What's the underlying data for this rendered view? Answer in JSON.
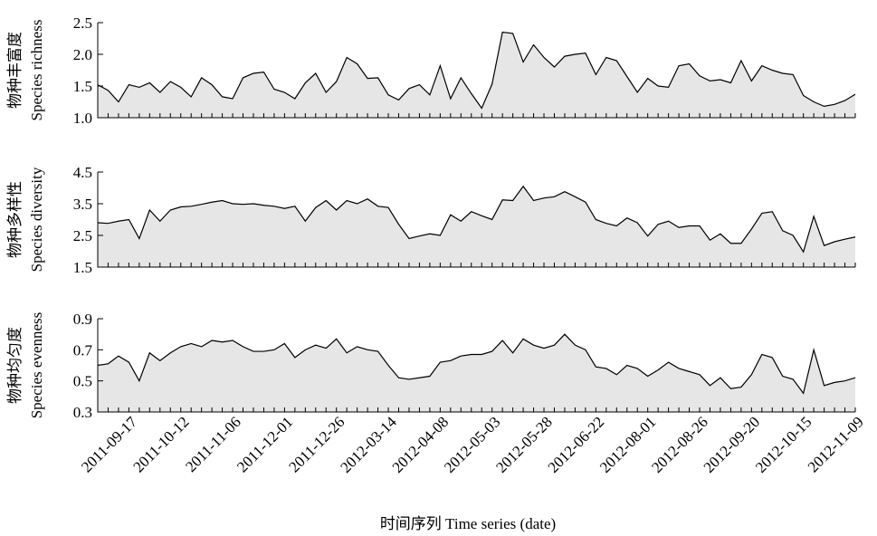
{
  "chart_data": [
    {
      "type": "area",
      "ylabel": [
        "物种丰富度",
        "Species richness"
      ],
      "color": "#e6e6e6",
      "line_color": "#000000",
      "ylim": [
        1.0,
        2.5
      ],
      "yticks": [
        {
          "value": 1,
          "label": "1.0"
        },
        1.5,
        {
          "value": 2,
          "label": "2.0"
        },
        2.5
      ],
      "values": [
        1.52,
        1.43,
        1.25,
        1.52,
        1.48,
        1.55,
        1.4,
        1.57,
        1.48,
        1.33,
        1.63,
        1.52,
        1.33,
        1.3,
        1.63,
        1.7,
        1.72,
        1.45,
        1.4,
        1.3,
        1.55,
        1.7,
        1.4,
        1.57,
        1.95,
        1.85,
        1.62,
        1.63,
        1.36,
        1.28,
        1.46,
        1.52,
        1.36,
        1.82,
        1.3,
        1.63,
        1.38,
        1.15,
        1.53,
        2.35,
        2.33,
        1.88,
        2.15,
        1.95,
        1.8,
        1.97,
        2.0,
        2.02,
        1.68,
        1.95,
        1.9,
        1.65,
        1.4,
        1.62,
        1.5,
        1.48,
        1.82,
        1.85,
        1.66,
        1.58,
        1.6,
        1.55,
        1.9,
        1.58,
        1.82,
        1.75,
        1.7,
        1.68,
        1.35,
        1.25,
        1.18,
        1.21,
        1.27,
        1.37
      ]
    },
    {
      "type": "area",
      "ylabel": [
        "物种多样性",
        "Species diversity"
      ],
      "color": "#e6e6e6",
      "line_color": "#000000",
      "ylim": [
        1.5,
        4.5
      ],
      "yticks": [
        1.5,
        2.5,
        3.5,
        4.5
      ],
      "values": [
        2.9,
        2.88,
        2.95,
        3.0,
        2.4,
        3.3,
        2.95,
        3.3,
        3.4,
        3.42,
        3.48,
        3.55,
        3.6,
        3.5,
        3.48,
        3.5,
        3.45,
        3.42,
        3.35,
        3.42,
        2.95,
        3.38,
        3.6,
        3.3,
        3.6,
        3.5,
        3.65,
        3.42,
        3.38,
        2.85,
        2.4,
        2.48,
        2.55,
        2.5,
        3.15,
        2.95,
        3.25,
        3.12,
        3.0,
        3.62,
        3.6,
        4.05,
        3.6,
        3.68,
        3.72,
        3.88,
        3.72,
        3.55,
        3.0,
        2.88,
        2.8,
        3.05,
        2.9,
        2.48,
        2.85,
        2.95,
        2.75,
        2.8,
        2.8,
        2.35,
        2.55,
        2.25,
        2.25,
        2.7,
        3.2,
        3.25,
        2.65,
        2.5,
        1.98,
        3.1,
        2.18,
        2.3,
        2.38,
        2.45
      ]
    },
    {
      "type": "area",
      "ylabel": [
        "物种均匀度",
        "Species evenness"
      ],
      "color": "#e6e6e6",
      "line_color": "#000000",
      "ylim": [
        0.3,
        0.9
      ],
      "yticks": [
        0.3,
        0.5,
        0.7,
        0.9
      ],
      "xlabel": "时间序列 Time series (date)",
      "categories": [
        null,
        null,
        null,
        "2011-09-17",
        null,
        null,
        null,
        null,
        "2011-10-12",
        null,
        null,
        null,
        null,
        "2011-11-06",
        null,
        null,
        null,
        null,
        "2011-12-01",
        null,
        null,
        null,
        null,
        "2011-12-26",
        null,
        null,
        null,
        null,
        "2012-03-14",
        null,
        null,
        null,
        null,
        "2012-04-08",
        null,
        null,
        null,
        null,
        "2012-05-03",
        null,
        null,
        null,
        null,
        "2012-05-28",
        null,
        null,
        null,
        null,
        "2012-06-22",
        null,
        null,
        null,
        null,
        "2012-08-01",
        null,
        null,
        null,
        null,
        "2012-08-26",
        null,
        null,
        null,
        null,
        "2012-09-20",
        null,
        null,
        null,
        null,
        "2012-10-15",
        null,
        null,
        null,
        null,
        "2012-11-09"
      ],
      "values": [
        0.6,
        0.61,
        0.66,
        0.62,
        0.5,
        0.68,
        0.63,
        0.68,
        0.72,
        0.74,
        0.72,
        0.76,
        0.75,
        0.76,
        0.72,
        0.69,
        0.69,
        0.7,
        0.74,
        0.65,
        0.7,
        0.73,
        0.71,
        0.77,
        0.68,
        0.72,
        0.7,
        0.69,
        0.6,
        0.52,
        0.51,
        0.52,
        0.53,
        0.62,
        0.63,
        0.66,
        0.67,
        0.67,
        0.69,
        0.76,
        0.68,
        0.77,
        0.73,
        0.71,
        0.73,
        0.8,
        0.73,
        0.7,
        0.59,
        0.58,
        0.54,
        0.6,
        0.58,
        0.53,
        0.57,
        0.62,
        0.58,
        0.56,
        0.54,
        0.47,
        0.52,
        0.45,
        0.46,
        0.54,
        0.67,
        0.65,
        0.53,
        0.51,
        0.42,
        0.7,
        0.47,
        0.49,
        0.5,
        0.52
      ]
    }
  ]
}
